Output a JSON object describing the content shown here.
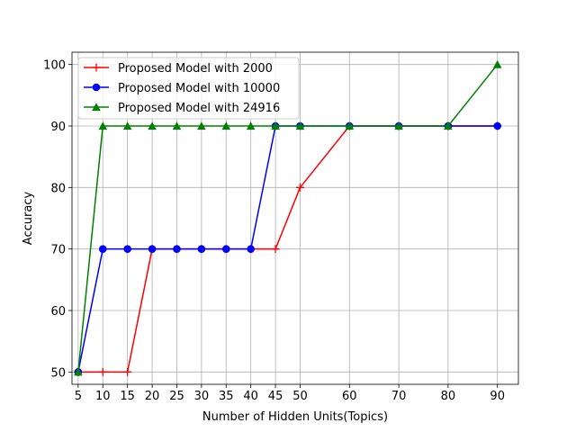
{
  "chart_data": {
    "type": "line",
    "title": "",
    "xlabel": "Number of Hidden Units(Topics)",
    "ylabel": "Accuracy",
    "x": [
      5,
      10,
      15,
      20,
      25,
      30,
      35,
      40,
      45,
      50,
      60,
      70,
      80,
      90
    ],
    "xticks": [
      "5",
      "10",
      "15",
      "20",
      "25",
      "30",
      "35",
      "40",
      "45",
      "50",
      "60",
      "70",
      "80",
      "90"
    ],
    "yticks": [
      "50",
      "60",
      "70",
      "80",
      "90",
      "100"
    ],
    "ylim": [
      48,
      102
    ],
    "grid": true,
    "legend_position": "top-left",
    "series": [
      {
        "name": "Proposed Model with 2000",
        "color": "#ff0000",
        "marker": "plus",
        "values": [
          50,
          50,
          50,
          70,
          70,
          70,
          70,
          70,
          70,
          80,
          90,
          90,
          90,
          90
        ]
      },
      {
        "name": "Proposed Model with 10000",
        "color": "#0000ff",
        "marker": "circle",
        "values": [
          50,
          70,
          70,
          70,
          70,
          70,
          70,
          70,
          90,
          90,
          90,
          90,
          90,
          90
        ]
      },
      {
        "name": "Proposed Model with 24916",
        "color": "#008000",
        "marker": "triangle",
        "values": [
          50,
          90,
          90,
          90,
          90,
          90,
          90,
          90,
          90,
          90,
          90,
          90,
          90,
          100
        ]
      }
    ]
  }
}
